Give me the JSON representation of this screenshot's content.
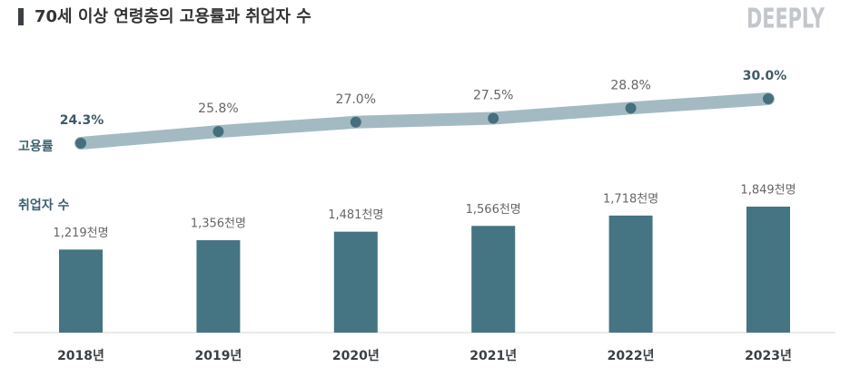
{
  "title": "70세 이상 연령층의 고용률과 취업자 수",
  "brand": "DEEPLY",
  "chart_data": [
    {
      "type": "line",
      "label": "고용률",
      "color": "#a3bac2",
      "marker_color": "#466f7d",
      "values": [
        24.3,
        25.8,
        27.0,
        27.5,
        28.8,
        30.0
      ],
      "value_labels": [
        "24.3%",
        "25.8%",
        "27.0%",
        "27.5%",
        "28.8%",
        "30.0%"
      ]
    },
    {
      "type": "bar",
      "label": "취업자 수",
      "color": "#457482",
      "categories": [
        "2018년",
        "2019년",
        "2020년",
        "2021년",
        "2022년",
        "2023년"
      ],
      "values": [
        1219,
        1356,
        1481,
        1566,
        1718,
        1849
      ],
      "value_labels": [
        "1,219천명",
        "1,356천명",
        "1,481천명",
        "1,566천명",
        "1,718천명",
        "1,849천명"
      ]
    }
  ]
}
